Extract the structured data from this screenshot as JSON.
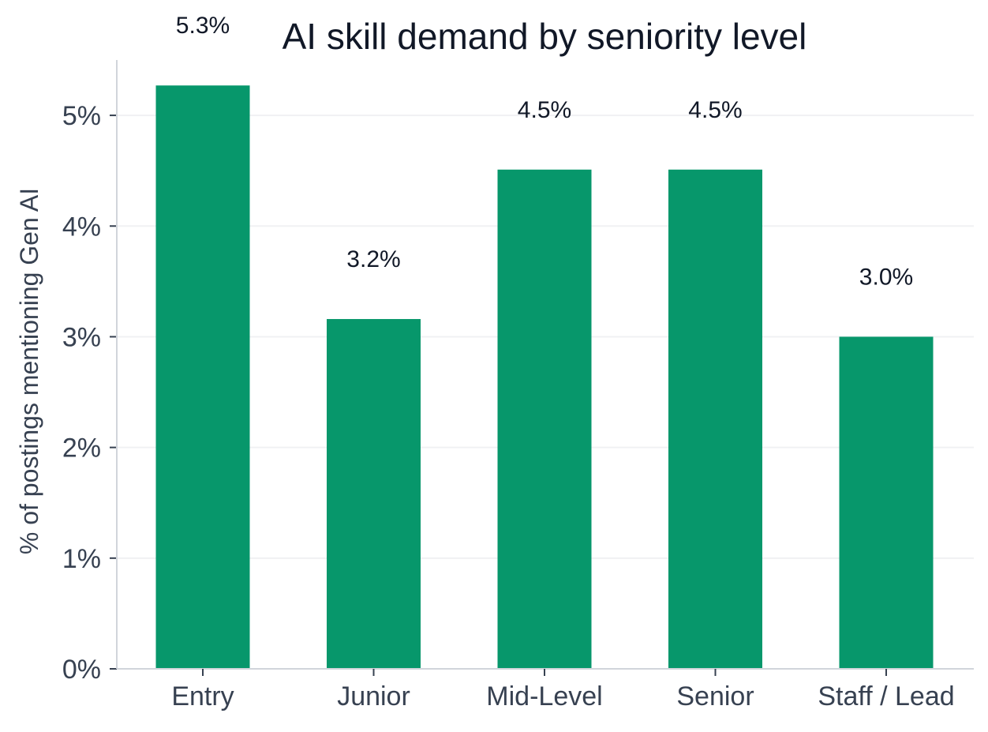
{
  "chart_data": {
    "type": "bar",
    "title": "AI skill demand by seniority level",
    "xlabel": "",
    "ylabel": "% of postings mentioning Gen AI",
    "categories": [
      "Entry",
      "Junior",
      "Mid-Level",
      "Senior",
      "Staff / Lead"
    ],
    "values": [
      5.27,
      3.16,
      4.51,
      4.51,
      3.0
    ],
    "data_labels": [
      "5.3%",
      "3.2%",
      "4.5%",
      "4.5%",
      "3.0%"
    ],
    "ylim": [
      0,
      5.5
    ],
    "yticks": [
      0,
      1,
      2,
      3,
      4,
      5
    ],
    "ytick_labels": [
      "0%",
      "1%",
      "2%",
      "3%",
      "4%",
      "5%"
    ],
    "grid": "horizontal",
    "colors": {
      "bar": "#07976b",
      "grid": "#f0f1f3",
      "axis": "#d1d5db",
      "title": "#111827",
      "tick_text": "#374151"
    }
  }
}
